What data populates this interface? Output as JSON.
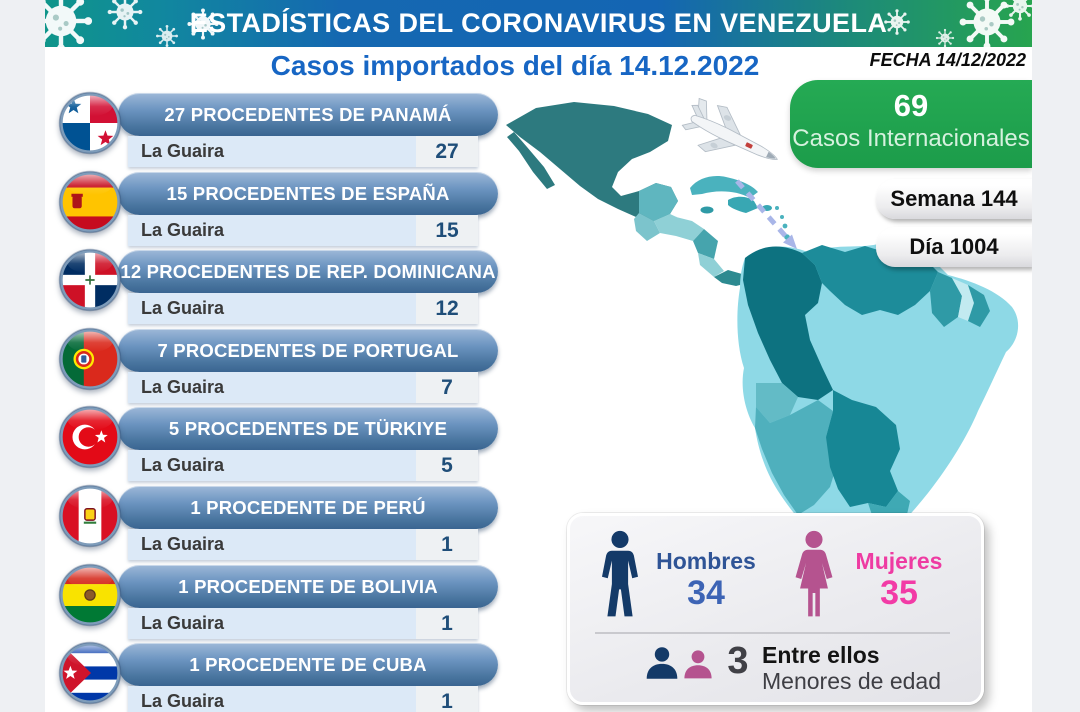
{
  "banner": {
    "title": "ESTADÍSTICAS DEL CORONAVIRUS EN VENEZUELA"
  },
  "subtitle": "Casos importados del día 14.12.2022",
  "fecha_label": "FECHA 14/12/2022",
  "international_badge": {
    "count": "69",
    "label": "Casos Internacionales"
  },
  "week_pill_label": "Semana 144",
  "day_pill_label": "Día 1004",
  "imports": [
    {
      "flag": "panama",
      "title": "27 PROCEDENTES DE PANAMÁ",
      "origin": "La Guaira",
      "count": "27"
    },
    {
      "flag": "spain",
      "title": "15 PROCEDENTES DE ESPAÑA",
      "origin": "La Guaira",
      "count": "15"
    },
    {
      "flag": "dominican-republic",
      "title": "12 PROCEDENTES DE REP. DOMINICANA",
      "origin": "La Guaira",
      "count": "12"
    },
    {
      "flag": "portugal",
      "title": "7 PROCEDENTES DE PORTUGAL",
      "origin": "La Guaira",
      "count": "7"
    },
    {
      "flag": "turkiye",
      "title": "5 PROCEDENTES DE TÜRKIYE",
      "origin": "La Guaira",
      "count": "5"
    },
    {
      "flag": "peru",
      "title": "1 PROCEDENTE DE PERÚ",
      "origin": "La Guaira",
      "count": "1"
    },
    {
      "flag": "bolivia",
      "title": "1 PROCEDENTE DE BOLIVIA",
      "origin": "La Guaira",
      "count": "1"
    },
    {
      "flag": "cuba",
      "title": "1 PROCEDENTE DE CUBA",
      "origin": "La Guaira",
      "count": "1"
    }
  ],
  "gender_panel": {
    "men_label": "Hombres",
    "men_count": "34",
    "women_label": "Mujeres",
    "women_count": "35",
    "minors_count": "3",
    "minors_line1": "Entre ellos",
    "minors_line2": "Menores de edad"
  },
  "icons": {
    "banner_decoration": "virus-icon",
    "map_plane": "airplane-icon",
    "map_route": "route-arrow-icon",
    "men": "male-icon",
    "women": "female-icon",
    "minors": "child-bust-icons",
    "flags": [
      "panama",
      "spain",
      "dominican-republic",
      "portugal",
      "turkiye",
      "peru",
      "bolivia",
      "cuba"
    ]
  },
  "colors": {
    "banner_teal": "#0f958a",
    "banner_blue": "#1465b3",
    "banner_green": "#27a44f",
    "subtitle_blue": "#1766c4",
    "pill_blue": "#49759f",
    "row_light_blue": "#dce9f7",
    "count_navy": "#1f4e79",
    "badge_green": "#1ea24c",
    "men_navy": "#143a68",
    "men_blue": "#3d64b5",
    "women_pink": "#f23ba6",
    "women_mauve": "#b5538f",
    "map_dark_teal": "#2d7a7f",
    "map_light_blue": "#8ed9e6",
    "route_arrow": "#a9b6e8"
  }
}
